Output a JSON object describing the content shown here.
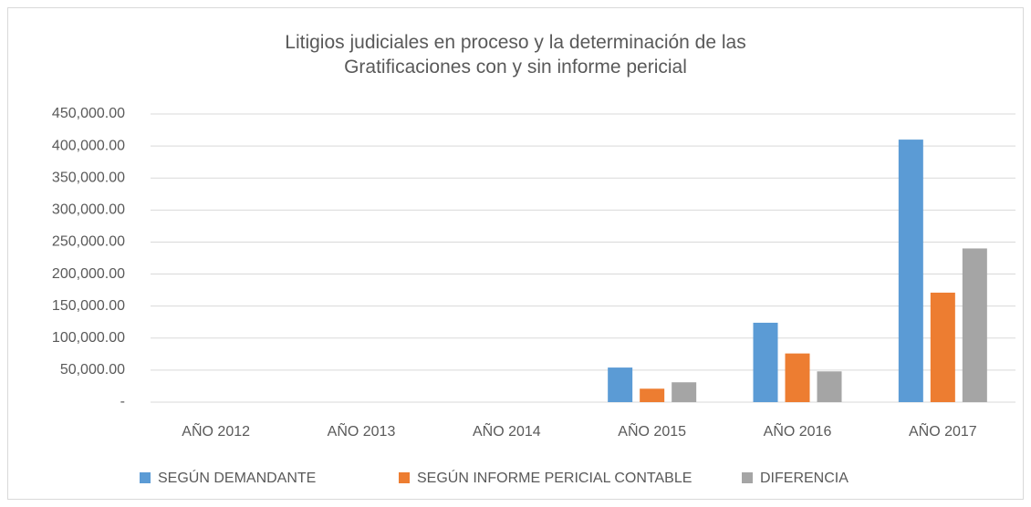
{
  "chart_data": {
    "type": "bar",
    "title": "Litigios judiciales en proceso y la determinación de las Gratificaciones con y sin informe pericial",
    "categories": [
      "AÑO 2012",
      "AÑO 2013",
      "AÑO 2014",
      "AÑO 2015",
      "AÑO 2016",
      "AÑO 2017"
    ],
    "series": [
      {
        "name": "SEGÚN DEMANDANTE",
        "color": "#5b9bd5",
        "values": [
          0,
          0,
          0,
          54000,
          124000,
          410000
        ]
      },
      {
        "name": "SEGÚN INFORME PERICIAL CONTABLE",
        "color": "#ed7d31",
        "values": [
          0,
          0,
          0,
          21000,
          76000,
          171000
        ]
      },
      {
        "name": "DIFERENCIA",
        "color": "#a5a5a5",
        "values": [
          0,
          0,
          0,
          31000,
          48000,
          240000
        ]
      }
    ],
    "ylim": [
      0,
      450000
    ],
    "yticks": [
      {
        "value": 0,
        "label": "-"
      },
      {
        "value": 50000,
        "label": "50,000.00"
      },
      {
        "value": 100000,
        "label": "100,000.00"
      },
      {
        "value": 150000,
        "label": "150,000.00"
      },
      {
        "value": 200000,
        "label": "200,000.00"
      },
      {
        "value": 250000,
        "label": "250,000.00"
      },
      {
        "value": 300000,
        "label": "300,000.00"
      },
      {
        "value": 350000,
        "label": "350,000.00"
      },
      {
        "value": 400000,
        "label": "400,000.00"
      },
      {
        "value": 450000,
        "label": "450,000.00"
      }
    ],
    "grid": true,
    "legend": "bottom"
  }
}
